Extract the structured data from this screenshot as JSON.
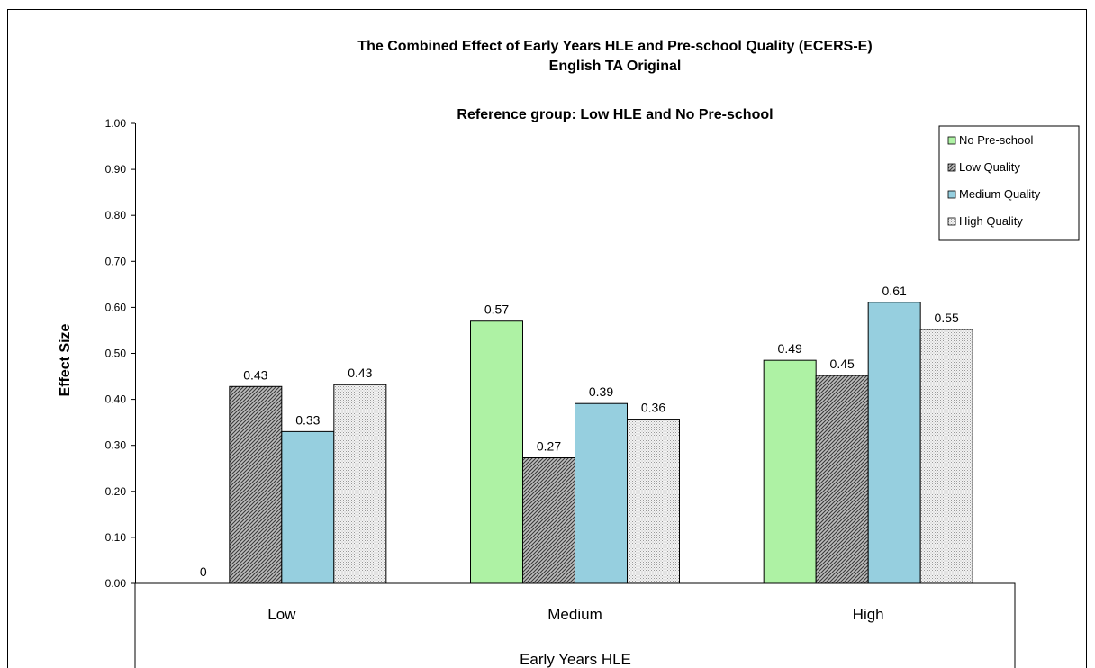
{
  "chart_data": {
    "type": "bar",
    "title": "The Combined Effect of Early Years HLE and Pre-school Quality  (ECERS-E)",
    "subtitle": "English TA Original",
    "reference_note": "Reference group: Low HLE and No Pre-school",
    "xlabel": "Early Years HLE",
    "ylabel": "Effect Size",
    "ylim": [
      0,
      1.0
    ],
    "y_ticks": [
      "0.00",
      "0.10",
      "0.20",
      "0.30",
      "0.40",
      "0.50",
      "0.60",
      "0.70",
      "0.80",
      "0.90",
      "1.00"
    ],
    "categories": [
      "Low",
      "Medium",
      "High"
    ],
    "series": [
      {
        "name": "No Pre-school",
        "values": [
          0,
          0.57,
          0.485
        ],
        "labels": [
          "0",
          "0.57",
          "0.49"
        ],
        "color": "#aef2a4",
        "pattern": "solid"
      },
      {
        "name": "Low Quality",
        "values": [
          0.428,
          0.273,
          0.452
        ],
        "labels": [
          "0.43",
          "0.27",
          "0.45"
        ],
        "color": "#7a7a7a",
        "pattern": "diagonal"
      },
      {
        "name": "Medium Quality",
        "values": [
          0.33,
          0.391,
          0.611
        ],
        "labels": [
          "0.33",
          "0.39",
          "0.61"
        ],
        "color": "#96cfdf",
        "pattern": "solid"
      },
      {
        "name": "High Quality",
        "values": [
          0.432,
          0.357,
          0.552
        ],
        "labels": [
          "0.43",
          "0.36",
          "0.55"
        ],
        "color": "#d9d9d9",
        "pattern": "dotted"
      }
    ],
    "grid": false,
    "legend_position": "top-right"
  }
}
